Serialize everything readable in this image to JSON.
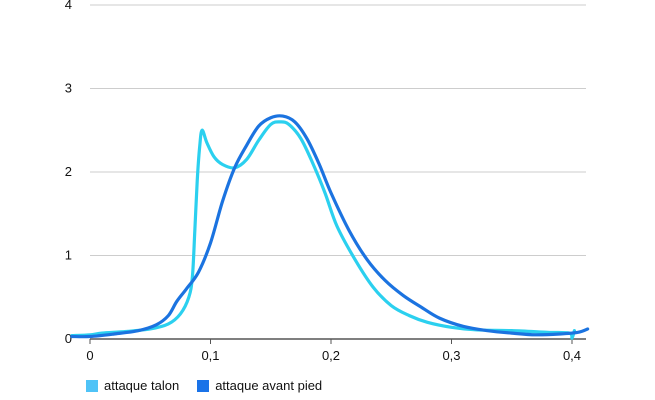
{
  "chart_data": {
    "type": "line",
    "xlim": [
      0,
      0.415
    ],
    "ylim": [
      0,
      4
    ],
    "x_ticks": [
      {
        "value": 0,
        "label": "0"
      },
      {
        "value": 0.1,
        "label": "0,1"
      },
      {
        "value": 0.2,
        "label": "0,2"
      },
      {
        "value": 0.3,
        "label": "0,3"
      },
      {
        "value": 0.4,
        "label": "0,4"
      }
    ],
    "y_ticks": [
      {
        "value": 0,
        "label": "0"
      },
      {
        "value": 1,
        "label": "1"
      },
      {
        "value": 2,
        "label": "2"
      },
      {
        "value": 3,
        "label": "3"
      },
      {
        "value": 4,
        "label": "4"
      }
    ],
    "grid": "horizontal",
    "legend_position": "bottom-left",
    "series": [
      {
        "name": "attaque talon",
        "color": "#2bd0ef",
        "points": [
          [
            -0.015,
            0.04
          ],
          [
            0,
            0.05
          ],
          [
            0.01,
            0.07
          ],
          [
            0.03,
            0.09
          ],
          [
            0.05,
            0.12
          ],
          [
            0.065,
            0.18
          ],
          [
            0.075,
            0.3
          ],
          [
            0.082,
            0.5
          ],
          [
            0.085,
            0.75
          ],
          [
            0.087,
            1.3
          ],
          [
            0.089,
            1.9
          ],
          [
            0.091,
            2.3
          ],
          [
            0.093,
            2.5
          ],
          [
            0.097,
            2.35
          ],
          [
            0.103,
            2.18
          ],
          [
            0.11,
            2.09
          ],
          [
            0.12,
            2.05
          ],
          [
            0.13,
            2.15
          ],
          [
            0.14,
            2.38
          ],
          [
            0.15,
            2.57
          ],
          [
            0.158,
            2.6
          ],
          [
            0.165,
            2.57
          ],
          [
            0.175,
            2.4
          ],
          [
            0.185,
            2.1
          ],
          [
            0.195,
            1.75
          ],
          [
            0.205,
            1.35
          ],
          [
            0.22,
            0.95
          ],
          [
            0.235,
            0.62
          ],
          [
            0.25,
            0.4
          ],
          [
            0.265,
            0.28
          ],
          [
            0.28,
            0.2
          ],
          [
            0.3,
            0.14
          ],
          [
            0.32,
            0.11
          ],
          [
            0.35,
            0.1
          ],
          [
            0.38,
            0.08
          ],
          [
            0.398,
            0.07
          ],
          [
            0.4,
            0.01
          ],
          [
            0.402,
            0.1
          ]
        ]
      },
      {
        "name": "attaque avant pied",
        "color": "#1b73e0",
        "points": [
          [
            -0.015,
            0.03
          ],
          [
            0,
            0.03
          ],
          [
            0.02,
            0.06
          ],
          [
            0.04,
            0.1
          ],
          [
            0.055,
            0.17
          ],
          [
            0.065,
            0.28
          ],
          [
            0.072,
            0.45
          ],
          [
            0.08,
            0.6
          ],
          [
            0.09,
            0.8
          ],
          [
            0.1,
            1.15
          ],
          [
            0.11,
            1.65
          ],
          [
            0.12,
            2.05
          ],
          [
            0.13,
            2.32
          ],
          [
            0.14,
            2.55
          ],
          [
            0.15,
            2.65
          ],
          [
            0.16,
            2.67
          ],
          [
            0.17,
            2.6
          ],
          [
            0.18,
            2.4
          ],
          [
            0.19,
            2.1
          ],
          [
            0.2,
            1.75
          ],
          [
            0.215,
            1.3
          ],
          [
            0.23,
            0.95
          ],
          [
            0.245,
            0.7
          ],
          [
            0.26,
            0.52
          ],
          [
            0.275,
            0.38
          ],
          [
            0.29,
            0.25
          ],
          [
            0.31,
            0.15
          ],
          [
            0.33,
            0.1
          ],
          [
            0.35,
            0.07
          ],
          [
            0.37,
            0.05
          ],
          [
            0.39,
            0.06
          ],
          [
            0.405,
            0.08
          ],
          [
            0.413,
            0.12
          ]
        ]
      }
    ]
  }
}
